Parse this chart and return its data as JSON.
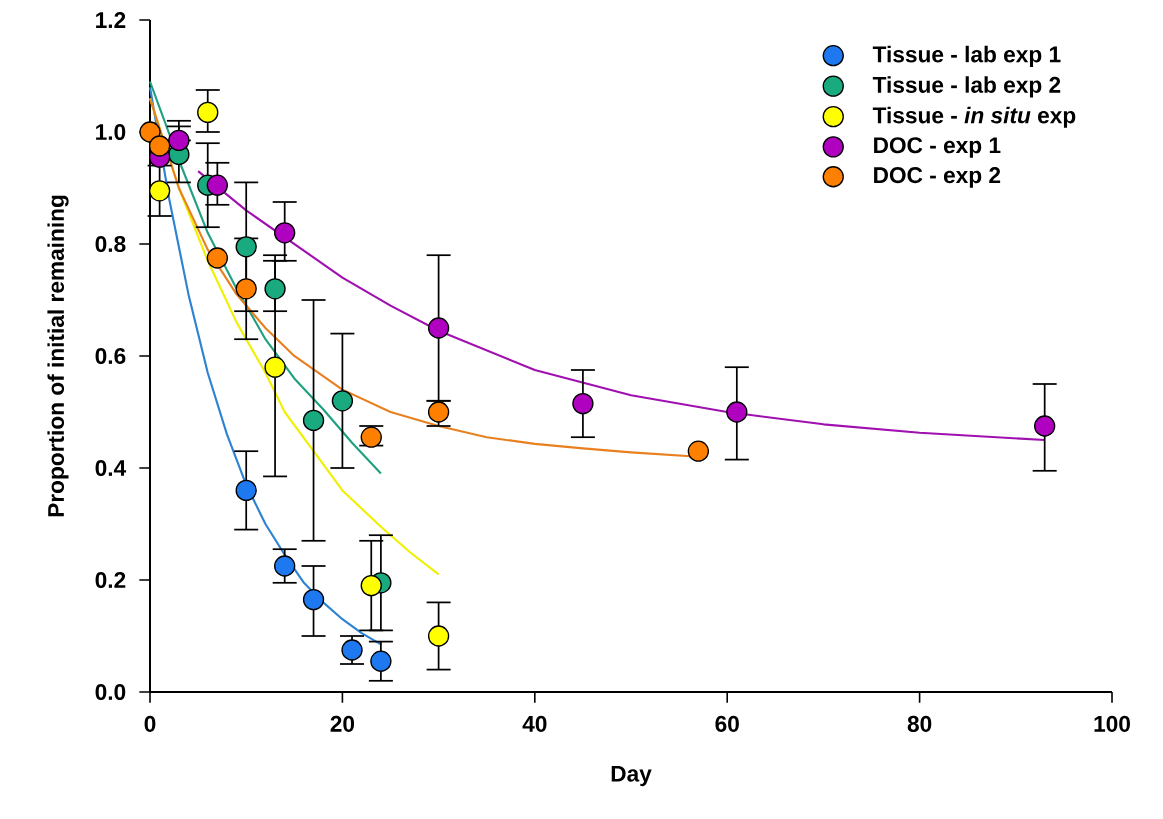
{
  "chart_data": {
    "type": "scatter",
    "xlabel": "Day",
    "ylabel": "Proportion of initial remaining",
    "xlim": [
      0,
      100
    ],
    "ylim": [
      0,
      1.2
    ],
    "xticks": [
      0,
      20,
      40,
      60,
      80,
      100
    ],
    "yticks": [
      {
        "value": 0,
        "label": "0.0"
      },
      {
        "value": 0.2,
        "label": "0.2"
      },
      {
        "value": 0.4,
        "label": "0.4"
      },
      {
        "value": 0.6,
        "label": "0.6"
      },
      {
        "value": 0.8,
        "label": "0.8"
      },
      {
        "value": 1.0,
        "label": "1.0"
      },
      {
        "value": 1.2,
        "label": "1.2"
      }
    ],
    "legend": "top right",
    "marker": "circle",
    "series": [
      {
        "type": "line",
        "marker": "none",
        "color": "#2d82d2",
        "x": [
          0,
          2,
          4,
          6,
          8,
          10,
          12,
          14,
          16,
          18,
          20,
          22,
          24
        ],
        "values": [
          1.08,
          0.88,
          0.71,
          0.57,
          0.46,
          0.37,
          0.3,
          0.245,
          0.195,
          0.16,
          0.13,
          0.105,
          0.085
        ]
      },
      {
        "type": "line",
        "marker": "none",
        "color": "#20a080",
        "x": [
          0,
          3,
          6,
          9,
          12,
          15,
          18,
          21,
          24
        ],
        "values": [
          1.09,
          0.95,
          0.82,
          0.72,
          0.63,
          0.56,
          0.505,
          0.445,
          0.39
        ]
      },
      {
        "type": "line",
        "marker": "none",
        "color": "#f0f000",
        "x": [
          0,
          3,
          6,
          9,
          12,
          14,
          17,
          20,
          24,
          27,
          30
        ],
        "values": [
          1.06,
          0.9,
          0.77,
          0.66,
          0.57,
          0.5,
          0.43,
          0.36,
          0.295,
          0.25,
          0.21
        ]
      },
      {
        "type": "line",
        "marker": "none",
        "color": "#a010b0",
        "x": [
          5,
          10,
          15,
          20,
          25,
          30,
          40,
          50,
          60,
          70,
          80,
          93
        ],
        "values": [
          0.93,
          0.86,
          0.8,
          0.74,
          0.69,
          0.645,
          0.575,
          0.53,
          0.5,
          0.478,
          0.463,
          0.45
        ]
      },
      {
        "type": "line",
        "marker": "none",
        "color": "#e88020",
        "x": [
          0,
          3,
          6,
          9,
          12,
          15,
          20,
          25,
          30,
          35,
          40,
          45,
          50,
          57
        ],
        "values": [
          1.06,
          0.9,
          0.79,
          0.71,
          0.65,
          0.6,
          0.54,
          0.5,
          0.475,
          0.455,
          0.443,
          0.435,
          0.428,
          0.42
        ]
      },
      {
        "name": "Tissue - lab exp 1",
        "color": "#1e78f0",
        "x": [
          10,
          14,
          17,
          21,
          24
        ],
        "values": [
          0.36,
          0.225,
          0.165,
          0.075,
          0.055
        ],
        "errors": [
          [
            0.29,
            0.43
          ],
          [
            0.195,
            0.255
          ],
          [
            0.1,
            0.225
          ],
          [
            0.05,
            0.1
          ],
          [
            0.02,
            0.09
          ]
        ]
      },
      {
        "name": "Tissue - lab exp 2",
        "color": "#1aaa80",
        "x": [
          3,
          6,
          10,
          13,
          17,
          20,
          24
        ],
        "values": [
          0.96,
          0.905,
          0.795,
          0.72,
          0.485,
          0.52,
          0.195
        ],
        "errors": [
          [
            0.91,
            1.01
          ],
          [
            0.83,
            0.98
          ],
          [
            0.68,
            0.91
          ],
          [
            0.68,
            0.78
          ],
          [
            0.27,
            0.7
          ],
          [
            0.4,
            0.64
          ],
          [
            0.11,
            0.28
          ]
        ]
      },
      {
        "name": "Tissue - *in situ* exp",
        "color": "#ffff00",
        "x": [
          1,
          6,
          13,
          23,
          30
        ],
        "values": [
          0.895,
          1.035,
          0.58,
          0.19,
          0.1
        ],
        "errors": [
          [
            0.85,
            0.94
          ],
          [
            1.0,
            1.075
          ],
          [
            0.385,
            0.77
          ],
          [
            0.11,
            0.27
          ],
          [
            0.04,
            0.16
          ]
        ]
      },
      {
        "name": "DOC - exp 1",
        "color": "#b000c0",
        "x": [
          1,
          3,
          7,
          14,
          30,
          45,
          61,
          93
        ],
        "values": [
          0.955,
          0.985,
          0.905,
          0.82,
          0.65,
          0.515,
          0.5,
          0.475
        ],
        "errors": [
          null,
          [
            0.985,
            1.02
          ],
          [
            0.87,
            0.945
          ],
          [
            0.77,
            0.875
          ],
          [
            0.52,
            0.78
          ],
          [
            0.455,
            0.575
          ],
          [
            0.415,
            0.58
          ],
          [
            0.395,
            0.55
          ]
        ]
      },
      {
        "name": "DOC - exp 2",
        "color": "#ff8000",
        "x": [
          0,
          1,
          7,
          10,
          23,
          30,
          57
        ],
        "values": [
          1.0,
          0.975,
          0.775,
          0.72,
          0.455,
          0.5,
          0.43
        ],
        "errors": [
          null,
          null,
          null,
          [
            0.63,
            0.81
          ],
          [
            0.44,
            0.475
          ],
          [
            0.475,
            0.52
          ],
          null
        ]
      }
    ]
  }
}
